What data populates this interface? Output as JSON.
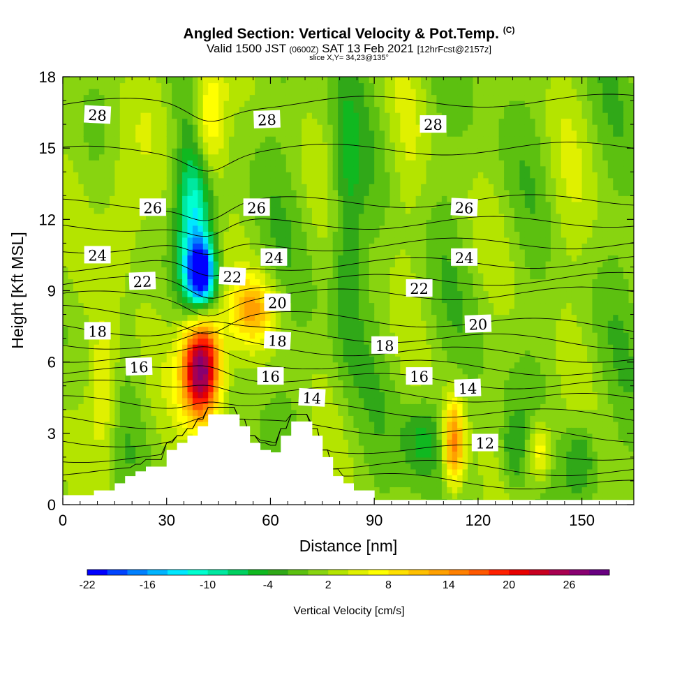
{
  "header": {
    "title": "Angled Section: Vertical Velocity & Pot.Temp.",
    "title_unit": "(C)",
    "valid_prefix": "Valid 1500 JST",
    "valid_z": "(0600Z)",
    "valid_date": "SAT 13 Feb 2021",
    "forecast": "[12hrFcst@2157z]",
    "slice": "slice X,Y= 34,23@135°"
  },
  "chart_data": {
    "type": "heatmap",
    "xlabel": "Distance [nm]",
    "ylabel": "Height [Kft MSL]",
    "xlim": [
      0,
      165
    ],
    "ylim": [
      0,
      18
    ],
    "x_ticks": [
      "0",
      "30",
      "60",
      "90",
      "120",
      "150"
    ],
    "x_tick_values": [
      0,
      30,
      60,
      90,
      120,
      150
    ],
    "y_ticks": [
      "0",
      "3",
      "6",
      "9",
      "12",
      "15",
      "18"
    ],
    "y_tick_values": [
      0,
      3,
      6,
      9,
      12,
      15,
      18
    ],
    "shaded_field": "Vertical Velocity",
    "contour_field": "Potential Temperature (C)",
    "colorbar": {
      "label": "Vertical Velocity [cm/s]",
      "tick_labels": [
        "-22",
        "-16",
        "-10",
        "-4",
        "2",
        "8",
        "14",
        "20",
        "26"
      ],
      "colors": [
        "#0000ff",
        "#0044ff",
        "#0080ff",
        "#00b4ff",
        "#00e8ff",
        "#00ffd0",
        "#00e8a0",
        "#00d060",
        "#10b820",
        "#30a818",
        "#5cc010",
        "#88d410",
        "#b4e400",
        "#e0f000",
        "#ffff00",
        "#ffe000",
        "#ffc000",
        "#ffa000",
        "#ff8000",
        "#ff5800",
        "#ff2000",
        "#e80000",
        "#c80020",
        "#a80050",
        "#880070",
        "#680080"
      ]
    },
    "contour_labels": [
      {
        "text": "28",
        "x": 10,
        "y": 16.4
      },
      {
        "text": "28",
        "x": 59,
        "y": 16.2
      },
      {
        "text": "28",
        "x": 107,
        "y": 16.0
      },
      {
        "text": "26",
        "x": 26,
        "y": 12.5
      },
      {
        "text": "26",
        "x": 56,
        "y": 12.5
      },
      {
        "text": "26",
        "x": 116,
        "y": 12.5
      },
      {
        "text": "24",
        "x": 10,
        "y": 10.5
      },
      {
        "text": "24",
        "x": 61,
        "y": 10.4
      },
      {
        "text": "24",
        "x": 116,
        "y": 10.4
      },
      {
        "text": "22",
        "x": 23,
        "y": 9.4
      },
      {
        "text": "22",
        "x": 49,
        "y": 9.6
      },
      {
        "text": "22",
        "x": 103,
        "y": 9.1
      },
      {
        "text": "20",
        "x": 62,
        "y": 8.5
      },
      {
        "text": "20",
        "x": 120,
        "y": 7.6
      },
      {
        "text": "18",
        "x": 10,
        "y": 7.3
      },
      {
        "text": "18",
        "x": 62,
        "y": 6.9
      },
      {
        "text": "18",
        "x": 93,
        "y": 6.7
      },
      {
        "text": "16",
        "x": 22,
        "y": 5.8
      },
      {
        "text": "16",
        "x": 60,
        "y": 5.4
      },
      {
        "text": "16",
        "x": 103,
        "y": 5.4
      },
      {
        "text": "14",
        "x": 72,
        "y": 4.5
      },
      {
        "text": "14",
        "x": 117,
        "y": 4.9
      },
      {
        "text": "12",
        "x": 122,
        "y": 2.6
      }
    ],
    "terrain_heights": [
      {
        "x0": 0,
        "x1": 9,
        "h": 0.4
      },
      {
        "x0": 9,
        "x1": 15,
        "h": 0.6
      },
      {
        "x0": 15,
        "x1": 18,
        "h": 0.9
      },
      {
        "x0": 18,
        "x1": 21,
        "h": 1.2
      },
      {
        "x0": 21,
        "x1": 24,
        "h": 1.4
      },
      {
        "x0": 24,
        "x1": 27,
        "h": 1.6
      },
      {
        "x0": 27,
        "x1": 30,
        "h": 1.6
      },
      {
        "x0": 30,
        "x1": 33,
        "h": 2.3
      },
      {
        "x0": 33,
        "x1": 36,
        "h": 2.6
      },
      {
        "x0": 36,
        "x1": 39,
        "h": 2.9
      },
      {
        "x0": 39,
        "x1": 42,
        "h": 3.3
      },
      {
        "x0": 42,
        "x1": 45,
        "h": 3.8
      },
      {
        "x0": 45,
        "x1": 51,
        "h": 3.8
      },
      {
        "x0": 51,
        "x1": 54,
        "h": 3.3
      },
      {
        "x0": 54,
        "x1": 57,
        "h": 2.6
      },
      {
        "x0": 57,
        "x1": 60,
        "h": 2.3
      },
      {
        "x0": 60,
        "x1": 63,
        "h": 2.2
      },
      {
        "x0": 63,
        "x1": 66,
        "h": 2.9
      },
      {
        "x0": 66,
        "x1": 72,
        "h": 3.5
      },
      {
        "x0": 72,
        "x1": 75,
        "h": 2.9
      },
      {
        "x0": 75,
        "x1": 78,
        "h": 2.0
      },
      {
        "x0": 78,
        "x1": 81,
        "h": 1.2
      },
      {
        "x0": 81,
        "x1": 84,
        "h": 0.9
      },
      {
        "x0": 84,
        "x1": 87,
        "h": 0.6
      },
      {
        "x0": 87,
        "x1": 90,
        "h": 0.6
      },
      {
        "x0": 90,
        "x1": 165,
        "h": 0.2
      }
    ],
    "velocity_features": [
      {
        "x": 40,
        "y": 5.8,
        "sx": 4,
        "sy": 1.6,
        "value": 30
      },
      {
        "x": 55,
        "y": 8.2,
        "sx": 5,
        "sy": 1.0,
        "value": 10
      },
      {
        "x": 42,
        "y": 16.2,
        "sx": 3.5,
        "sy": 1.8,
        "value": 11
      },
      {
        "x": 40,
        "y": 9.7,
        "sx": 2.8,
        "sy": 0.9,
        "value": -22
      },
      {
        "x": 38,
        "y": 12.2,
        "sx": 3.6,
        "sy": 2.6,
        "value": -13
      },
      {
        "x": 12,
        "y": 5.0,
        "sx": 3,
        "sy": 2.2,
        "value": 7
      },
      {
        "x": 17,
        "y": 13.0,
        "sx": 5,
        "sy": 2.5,
        "value": 5
      },
      {
        "x": 113,
        "y": 2.6,
        "sx": 2.2,
        "sy": 1.4,
        "value": 15
      },
      {
        "x": 138,
        "y": 2.3,
        "sx": 2.5,
        "sy": 1.0,
        "value": 9
      },
      {
        "x": 104,
        "y": 2.8,
        "sx": 4,
        "sy": 1.2,
        "value": -6
      },
      {
        "x": 130,
        "y": 2.2,
        "sx": 2.5,
        "sy": 1.2,
        "value": -5
      },
      {
        "x": 150,
        "y": 2.0,
        "sx": 3,
        "sy": 1.2,
        "value": -6
      },
      {
        "x": 100,
        "y": 14.5,
        "sx": 4,
        "sy": 3.0,
        "value": 2
      },
      {
        "x": 145,
        "y": 12.0,
        "sx": 5,
        "sy": 3.0,
        "value": 2
      },
      {
        "x": 82,
        "y": 12.0,
        "sx": 3,
        "sy": 4.0,
        "value": -5
      }
    ]
  }
}
